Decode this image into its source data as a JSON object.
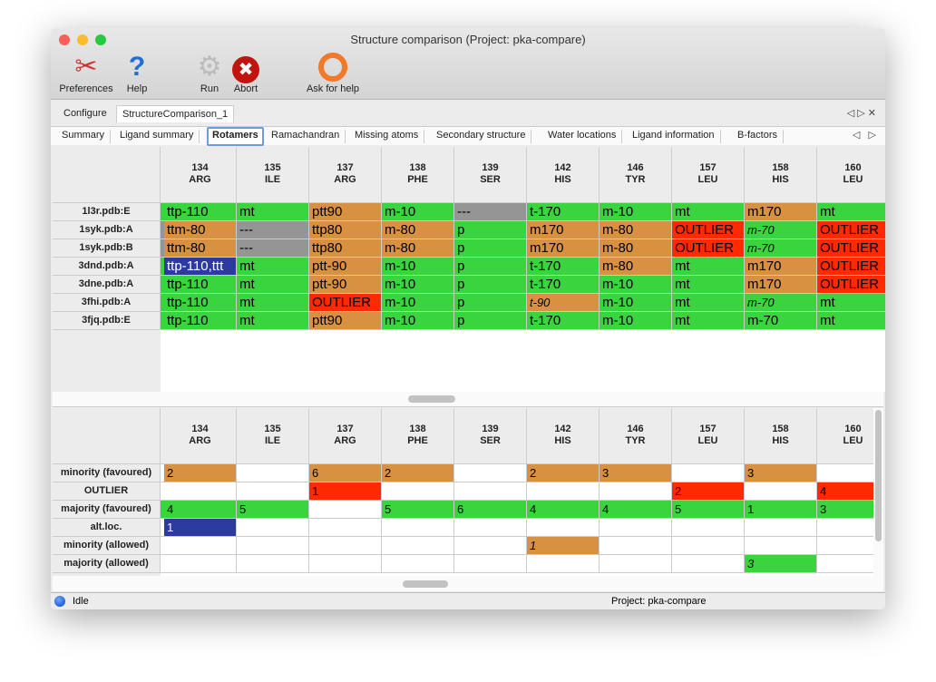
{
  "window": {
    "title": "Structure comparison (Project: pka-compare)"
  },
  "toolbar": [
    {
      "label": "Preferences",
      "icon": "tools-icon"
    },
    {
      "label": "Help",
      "icon": "help-icon"
    },
    {
      "label": "Run",
      "icon": "gear-icon"
    },
    {
      "label": "Abort",
      "icon": "abort-icon"
    },
    {
      "label": "Ask for help",
      "icon": "lifebuoy-icon"
    }
  ],
  "doc_tabs": [
    "Configure",
    "StructureComparison_1"
  ],
  "active_doc_tab": 1,
  "sub_tabs": [
    "Summary",
    "Ligand summary",
    "Rotamers",
    "Ramachandran",
    "Missing atoms",
    "Secondary structure",
    "Water locations",
    "Ligand information",
    "B-factors"
  ],
  "active_sub_tab": 2,
  "colors": {
    "g": "#3ad43f",
    "o": "#d79140",
    "r": "#ff2a00",
    "x": "#959595",
    "b": "#2d3aa0"
  },
  "columns": [
    [
      "134",
      "ARG"
    ],
    [
      "135",
      "ILE"
    ],
    [
      "137",
      "ARG"
    ],
    [
      "138",
      "PHE"
    ],
    [
      "139",
      "SER"
    ],
    [
      "142",
      "HIS"
    ],
    [
      "146",
      "TYR"
    ],
    [
      "157",
      "LEU"
    ],
    [
      "158",
      "HIS"
    ],
    [
      "160",
      "LEU"
    ]
  ],
  "top_table": {
    "rows": [
      {
        "label": "1l3r.pdb:E",
        "strip": "g",
        "cells": [
          [
            "ttp-110",
            "g"
          ],
          [
            "mt",
            "g"
          ],
          [
            "ptt90",
            "o"
          ],
          [
            "m-10",
            "g"
          ],
          [
            "---",
            "x"
          ],
          [
            "t-170",
            "g"
          ],
          [
            "m-10",
            "g"
          ],
          [
            "mt",
            "g"
          ],
          [
            "m170",
            "o"
          ],
          [
            "mt",
            "g"
          ]
        ]
      },
      {
        "label": "1syk.pdb:A",
        "strip": "x",
        "cells": [
          [
            "ttm-80",
            "o"
          ],
          [
            "---",
            "x"
          ],
          [
            "ttp80",
            "o"
          ],
          [
            "m-80",
            "o"
          ],
          [
            "p",
            "g"
          ],
          [
            "m170",
            "o"
          ],
          [
            "m-80",
            "o"
          ],
          [
            "OUTLIER",
            "r"
          ],
          [
            "m-70",
            "g",
            1
          ],
          [
            "OUTLIER",
            "r"
          ]
        ]
      },
      {
        "label": "1syk.pdb:B",
        "strip": "x",
        "cells": [
          [
            "ttm-80",
            "o"
          ],
          [
            "---",
            "x"
          ],
          [
            "ttp80",
            "o"
          ],
          [
            "m-80",
            "o"
          ],
          [
            "p",
            "g"
          ],
          [
            "m170",
            "o"
          ],
          [
            "m-80",
            "o"
          ],
          [
            "OUTLIER",
            "r"
          ],
          [
            "m-70",
            "g",
            1
          ],
          [
            "OUTLIER",
            "r"
          ]
        ]
      },
      {
        "label": "3dnd.pdb:A",
        "strip": "g",
        "cells": [
          [
            "ttp-110,ttt",
            "b"
          ],
          [
            "mt",
            "g"
          ],
          [
            "ptt-90",
            "o"
          ],
          [
            "m-10",
            "g"
          ],
          [
            "p",
            "g"
          ],
          [
            "t-170",
            "g"
          ],
          [
            "m-80",
            "o"
          ],
          [
            "mt",
            "g"
          ],
          [
            "m170",
            "o"
          ],
          [
            "OUTLIER",
            "r"
          ]
        ]
      },
      {
        "label": "3dne.pdb:A",
        "strip": "g",
        "cells": [
          [
            "ttp-110",
            "g"
          ],
          [
            "mt",
            "g"
          ],
          [
            "ptt-90",
            "o"
          ],
          [
            "m-10",
            "g"
          ],
          [
            "p",
            "g"
          ],
          [
            "t-170",
            "g"
          ],
          [
            "m-10",
            "g"
          ],
          [
            "mt",
            "g"
          ],
          [
            "m170",
            "o"
          ],
          [
            "OUTLIER",
            "r"
          ]
        ]
      },
      {
        "label": "3fhi.pdb:A",
        "strip": "g",
        "cells": [
          [
            "ttp-110",
            "g"
          ],
          [
            "mt",
            "g"
          ],
          [
            "OUTLIER",
            "r"
          ],
          [
            "m-10",
            "g"
          ],
          [
            "p",
            "g"
          ],
          [
            "t-90",
            "o",
            1
          ],
          [
            "m-10",
            "g"
          ],
          [
            "mt",
            "g"
          ],
          [
            "m-70",
            "g",
            1
          ],
          [
            "mt",
            "g"
          ]
        ]
      },
      {
        "label": "3fjq.pdb:E",
        "strip": "g",
        "cells": [
          [
            "ttp-110",
            "g"
          ],
          [
            "mt",
            "g"
          ],
          [
            "ptt90",
            "o"
          ],
          [
            "m-10",
            "g"
          ],
          [
            "p",
            "g"
          ],
          [
            "t-170",
            "g"
          ],
          [
            "m-10",
            "g"
          ],
          [
            "mt",
            "g"
          ],
          [
            "m-70",
            "g"
          ],
          [
            "mt",
            "g"
          ]
        ]
      }
    ]
  },
  "bottom_table": {
    "rows": [
      {
        "label": "minority (favoured)",
        "strip": "w",
        "cells": [
          [
            "2",
            "o"
          ],
          [
            "",
            "w"
          ],
          [
            "6",
            "o"
          ],
          [
            "2",
            "o"
          ],
          [
            "",
            "w"
          ],
          [
            "2",
            "o"
          ],
          [
            "3",
            "o"
          ],
          [
            "",
            "w"
          ],
          [
            "3",
            "o"
          ],
          [
            "",
            "w"
          ]
        ]
      },
      {
        "label": "OUTLIER",
        "strip": "w",
        "cells": [
          [
            "",
            "w"
          ],
          [
            "",
            "w"
          ],
          [
            "1",
            "r"
          ],
          [
            "",
            "w"
          ],
          [
            "",
            "w"
          ],
          [
            "",
            "w"
          ],
          [
            "",
            "w"
          ],
          [
            "2",
            "r"
          ],
          [
            "",
            "w"
          ],
          [
            "4",
            "r"
          ]
        ]
      },
      {
        "label": "majority (favoured)",
        "strip": "g",
        "cells": [
          [
            "4",
            "g"
          ],
          [
            "5",
            "g"
          ],
          [
            "",
            "w"
          ],
          [
            "5",
            "g"
          ],
          [
            "6",
            "g"
          ],
          [
            "4",
            "g"
          ],
          [
            "4",
            "g"
          ],
          [
            "5",
            "g"
          ],
          [
            "1",
            "g"
          ],
          [
            "3",
            "g"
          ]
        ]
      },
      {
        "label": "alt.loc.",
        "strip": "w",
        "cells": [
          [
            "1",
            "b"
          ],
          [
            "",
            "w"
          ],
          [
            "",
            "w"
          ],
          [
            "",
            "w"
          ],
          [
            "",
            "w"
          ],
          [
            "",
            "w"
          ],
          [
            "",
            "w"
          ],
          [
            "",
            "w"
          ],
          [
            "",
            "w"
          ],
          [
            "",
            "w"
          ]
        ]
      },
      {
        "label": "minority (allowed)",
        "strip": "w",
        "cells": [
          [
            "",
            "w"
          ],
          [
            "",
            "w"
          ],
          [
            "",
            "w"
          ],
          [
            "",
            "w"
          ],
          [
            "",
            "w"
          ],
          [
            "1",
            "o",
            1
          ],
          [
            "",
            "w"
          ],
          [
            "",
            "w"
          ],
          [
            "",
            "w"
          ],
          [
            "",
            "w"
          ]
        ]
      },
      {
        "label": "majority (allowed)",
        "strip": "w",
        "cells": [
          [
            "",
            "w"
          ],
          [
            "",
            "w"
          ],
          [
            "",
            "w"
          ],
          [
            "",
            "w"
          ],
          [
            "",
            "w"
          ],
          [
            "",
            "w"
          ],
          [
            "",
            "w"
          ],
          [
            "",
            "w"
          ],
          [
            "3",
            "g",
            1
          ],
          [
            "",
            "w"
          ]
        ]
      }
    ]
  },
  "status": {
    "state": "Idle",
    "project": "Project: pka-compare"
  }
}
